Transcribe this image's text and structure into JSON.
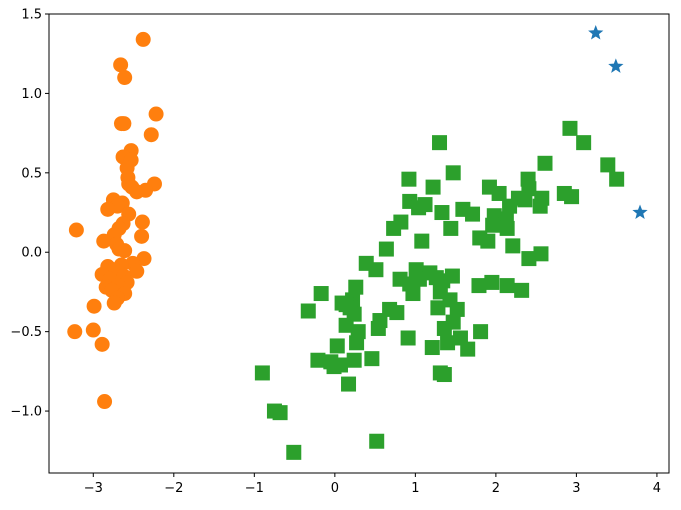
{
  "chart_data": {
    "type": "scatter",
    "title": "",
    "xlabel": "",
    "ylabel": "",
    "xlim": [
      -3.55,
      4.15
    ],
    "ylim": [
      -1.39,
      1.5
    ],
    "grid": false,
    "legend": "none",
    "x_ticks": [
      -3,
      -2,
      -1,
      0,
      1,
      2,
      3,
      4
    ],
    "x_tick_labels": [
      "−3",
      "−2",
      "−1",
      "0",
      "1",
      "2",
      "3",
      "4"
    ],
    "y_ticks": [
      -1.0,
      -0.5,
      0.0,
      0.5,
      1.0,
      1.5
    ],
    "y_tick_labels": [
      "−1.0",
      "−0.5",
      "0.0",
      "0.5",
      "1.0",
      "1.5"
    ],
    "series": [
      {
        "marker": "star",
        "color": "#1f77b4",
        "points": [
          [
            3.24,
            1.38
          ],
          [
            3.49,
            1.17
          ],
          [
            3.79,
            0.25
          ]
        ]
      },
      {
        "marker": "circle",
        "color": "#ff7f0e",
        "points": [
          [
            -2.38,
            1.34
          ],
          [
            -2.66,
            1.18
          ],
          [
            -2.61,
            1.1
          ],
          [
            -2.22,
            0.87
          ],
          [
            -2.65,
            0.81
          ],
          [
            -2.62,
            0.81
          ],
          [
            -2.28,
            0.74
          ],
          [
            -2.53,
            0.64
          ],
          [
            -2.63,
            0.6
          ],
          [
            -2.53,
            0.58
          ],
          [
            -2.58,
            0.53
          ],
          [
            -2.57,
            0.47
          ],
          [
            -2.24,
            0.43
          ],
          [
            -2.56,
            0.43
          ],
          [
            -2.52,
            0.41
          ],
          [
            -2.35,
            0.39
          ],
          [
            -2.46,
            0.38
          ],
          [
            -2.75,
            0.33
          ],
          [
            -2.64,
            0.31
          ],
          [
            -2.7,
            0.29
          ],
          [
            -2.82,
            0.27
          ],
          [
            -2.56,
            0.24
          ],
          [
            -2.63,
            0.18
          ],
          [
            -2.39,
            0.19
          ],
          [
            -2.68,
            0.15
          ],
          [
            -3.21,
            0.14
          ],
          [
            -2.74,
            0.11
          ],
          [
            -2.4,
            0.1
          ],
          [
            -2.87,
            0.07
          ],
          [
            -2.71,
            0.05
          ],
          [
            -2.68,
            0.02
          ],
          [
            -2.61,
            0.01
          ],
          [
            -2.37,
            -0.04
          ],
          [
            -2.51,
            -0.07
          ],
          [
            -2.65,
            -0.08
          ],
          [
            -2.82,
            -0.09
          ],
          [
            -2.74,
            -0.11
          ],
          [
            -2.46,
            -0.12
          ],
          [
            -2.89,
            -0.14
          ],
          [
            -2.62,
            -0.15
          ],
          [
            -2.79,
            -0.17
          ],
          [
            -2.58,
            -0.19
          ],
          [
            -2.69,
            -0.21
          ],
          [
            -2.84,
            -0.22
          ],
          [
            -2.77,
            -0.24
          ],
          [
            -2.61,
            -0.26
          ],
          [
            -2.7,
            -0.29
          ],
          [
            -2.74,
            -0.32
          ],
          [
            -2.99,
            -0.34
          ],
          [
            -3.23,
            -0.5
          ],
          [
            -3.0,
            -0.49
          ],
          [
            -2.89,
            -0.58
          ],
          [
            -2.86,
            -0.94
          ]
        ]
      },
      {
        "marker": "square",
        "color": "#2ca02c",
        "points": [
          [
            2.92,
            0.78
          ],
          [
            1.3,
            0.69
          ],
          [
            3.09,
            0.69
          ],
          [
            2.61,
            0.56
          ],
          [
            3.39,
            0.55
          ],
          [
            3.5,
            0.46
          ],
          [
            1.47,
            0.5
          ],
          [
            0.92,
            0.46
          ],
          [
            2.4,
            0.46
          ],
          [
            1.22,
            0.41
          ],
          [
            1.92,
            0.41
          ],
          [
            2.41,
            0.4
          ],
          [
            0.93,
            0.32
          ],
          [
            1.04,
            0.28
          ],
          [
            2.04,
            0.37
          ],
          [
            2.28,
            0.34
          ],
          [
            2.36,
            0.33
          ],
          [
            2.57,
            0.34
          ],
          [
            2.85,
            0.37
          ],
          [
            2.94,
            0.35
          ],
          [
            1.12,
            0.3
          ],
          [
            2.17,
            0.29
          ],
          [
            2.55,
            0.29
          ],
          [
            1.33,
            0.25
          ],
          [
            1.59,
            0.27
          ],
          [
            1.71,
            0.24
          ],
          [
            1.98,
            0.23
          ],
          [
            2.13,
            0.21
          ],
          [
            0.82,
            0.19
          ],
          [
            1.96,
            0.17
          ],
          [
            2.14,
            0.15
          ],
          [
            0.73,
            0.15
          ],
          [
            1.44,
            0.15
          ],
          [
            1.8,
            0.09
          ],
          [
            1.9,
            0.07
          ],
          [
            2.21,
            0.04
          ],
          [
            1.08,
            0.07
          ],
          [
            0.64,
            0.02
          ],
          [
            2.41,
            -0.04
          ],
          [
            2.56,
            -0.01
          ],
          [
            0.39,
            -0.07
          ],
          [
            0.51,
            -0.11
          ],
          [
            1.01,
            -0.11
          ],
          [
            1.18,
            -0.13
          ],
          [
            1.26,
            -0.16
          ],
          [
            1.46,
            -0.15
          ],
          [
            0.81,
            -0.17
          ],
          [
            1.05,
            -0.17
          ],
          [
            1.34,
            -0.18
          ],
          [
            1.95,
            -0.19
          ],
          [
            0.93,
            -0.2
          ],
          [
            1.79,
            -0.21
          ],
          [
            2.14,
            -0.21
          ],
          [
            2.32,
            -0.24
          ],
          [
            0.26,
            -0.22
          ],
          [
            1.31,
            -0.25
          ],
          [
            0.97,
            -0.26
          ],
          [
            -0.17,
            -0.26
          ],
          [
            0.22,
            -0.3
          ],
          [
            1.43,
            -0.3
          ],
          [
            0.09,
            -0.32
          ],
          [
            0.14,
            -0.33
          ],
          [
            1.28,
            -0.35
          ],
          [
            0.68,
            -0.36
          ],
          [
            0.19,
            -0.35
          ],
          [
            1.52,
            -0.36
          ],
          [
            -0.33,
            -0.37
          ],
          [
            0.77,
            -0.38
          ],
          [
            0.24,
            -0.39
          ],
          [
            0.56,
            -0.43
          ],
          [
            1.47,
            -0.44
          ],
          [
            0.14,
            -0.46
          ],
          [
            1.36,
            -0.48
          ],
          [
            0.54,
            -0.48
          ],
          [
            1.81,
            -0.5
          ],
          [
            0.29,
            -0.5
          ],
          [
            0.91,
            -0.54
          ],
          [
            1.56,
            -0.54
          ],
          [
            0.27,
            -0.57
          ],
          [
            1.4,
            -0.57
          ],
          [
            0.03,
            -0.59
          ],
          [
            1.21,
            -0.6
          ],
          [
            1.65,
            -0.61
          ],
          [
            -0.21,
            -0.68
          ],
          [
            0.46,
            -0.67
          ],
          [
            -0.05,
            -0.69
          ],
          [
            0.07,
            -0.71
          ],
          [
            0.24,
            -0.68
          ],
          [
            -0.01,
            -0.72
          ],
          [
            1.31,
            -0.76
          ],
          [
            1.36,
            -0.77
          ],
          [
            0.17,
            -0.83
          ],
          [
            -0.9,
            -0.76
          ],
          [
            -0.75,
            -1.0
          ],
          [
            -0.68,
            -1.01
          ],
          [
            0.52,
            -1.19
          ],
          [
            -0.51,
            -1.26
          ]
        ]
      }
    ]
  }
}
